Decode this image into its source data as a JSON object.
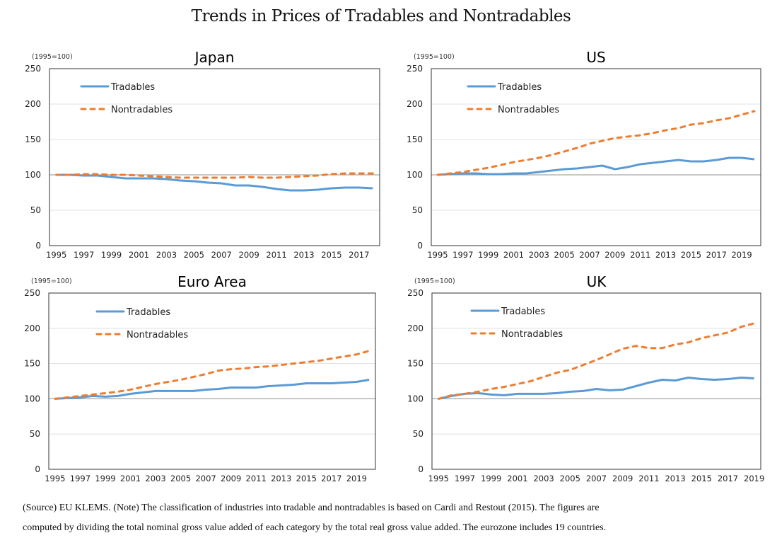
{
  "title": "Trends in Prices of Tradables and Nontradables",
  "colors": {
    "tradables": "#5B9BD5",
    "nontradables": "#ED7D31",
    "grid": "#d9d9d9",
    "baseline": "#a6a6a6"
  },
  "chart_data": [
    {
      "type": "line",
      "title": "Japan",
      "unit_label": "(1995=100)",
      "ylim": [
        0,
        250
      ],
      "yticks": [
        0,
        50,
        100,
        150,
        200,
        250
      ],
      "x": [
        1995,
        1996,
        1997,
        1998,
        1999,
        2000,
        2001,
        2002,
        2003,
        2004,
        2005,
        2006,
        2007,
        2008,
        2009,
        2010,
        2011,
        2012,
        2013,
        2014,
        2015,
        2016,
        2017,
        2018
      ],
      "xtick_labels": [
        "1995",
        "1997",
        "1999",
        "2001",
        "2003",
        "2005",
        "2007",
        "2009",
        "2011",
        "2013",
        "2015",
        "2017"
      ],
      "grid": true,
      "legend": "top-left",
      "series": [
        {
          "name": "Tradables",
          "style": "solid",
          "values": [
            100,
            100,
            99,
            99,
            97,
            95,
            95,
            95,
            94,
            92,
            91,
            89,
            88,
            85,
            85,
            83,
            80,
            78,
            78,
            79,
            81,
            82,
            82,
            81
          ]
        },
        {
          "name": "Nontradables",
          "style": "dashed",
          "values": [
            100,
            100,
            101,
            101,
            100,
            100,
            99,
            98,
            97,
            96,
            96,
            96,
            96,
            96,
            97,
            96,
            96,
            97,
            98,
            99,
            101,
            102,
            102,
            102
          ]
        }
      ]
    },
    {
      "type": "line",
      "title": "US",
      "unit_label": "(1995=100)",
      "ylim": [
        0,
        250
      ],
      "yticks": [
        0,
        50,
        100,
        150,
        200,
        250
      ],
      "x": [
        1995,
        1996,
        1997,
        1998,
        1999,
        2000,
        2001,
        2002,
        2003,
        2004,
        2005,
        2006,
        2007,
        2008,
        2009,
        2010,
        2011,
        2012,
        2013,
        2014,
        2015,
        2016,
        2017,
        2018,
        2019,
        2020
      ],
      "xtick_labels": [
        "1995",
        "1997",
        "1999",
        "2001",
        "2003",
        "2005",
        "2007",
        "2009",
        "2011",
        "2013",
        "2015",
        "2017",
        "2019"
      ],
      "grid": true,
      "legend": "top-left",
      "series": [
        {
          "name": "Tradables",
          "style": "solid",
          "values": [
            100,
            101,
            102,
            102,
            101,
            101,
            102,
            102,
            104,
            106,
            108,
            109,
            111,
            113,
            108,
            111,
            115,
            117,
            119,
            121,
            119,
            119,
            121,
            124,
            124,
            122
          ]
        },
        {
          "name": "Nontradables",
          "style": "dashed",
          "values": [
            100,
            102,
            104,
            107,
            110,
            114,
            118,
            121,
            124,
            128,
            133,
            138,
            144,
            148,
            152,
            154,
            156,
            159,
            163,
            166,
            171,
            173,
            177,
            180,
            185,
            190
          ]
        }
      ]
    },
    {
      "type": "line",
      "title": "Euro Area",
      "unit_label": "(1995=100)",
      "ylim": [
        0,
        250
      ],
      "yticks": [
        0,
        50,
        100,
        150,
        200,
        250
      ],
      "x": [
        1995,
        1996,
        1997,
        1998,
        1999,
        2000,
        2001,
        2002,
        2003,
        2004,
        2005,
        2006,
        2007,
        2008,
        2009,
        2010,
        2011,
        2012,
        2013,
        2014,
        2015,
        2016,
        2017,
        2018,
        2019,
        2020
      ],
      "xtick_labels": [
        "1995",
        "1997",
        "1999",
        "2001",
        "2003",
        "2005",
        "2007",
        "2009",
        "2011",
        "2013",
        "2015",
        "2017",
        "2019"
      ],
      "grid": true,
      "legend": "top-left",
      "series": [
        {
          "name": "Tradables",
          "style": "solid",
          "values": [
            100,
            101,
            102,
            104,
            103,
            104,
            107,
            109,
            111,
            111,
            111,
            111,
            113,
            114,
            116,
            116,
            116,
            118,
            119,
            120,
            122,
            122,
            122,
            123,
            124,
            127
          ]
        },
        {
          "name": "Nontradables",
          "style": "dashed",
          "values": [
            100,
            102,
            104,
            106,
            108,
            110,
            113,
            117,
            121,
            124,
            127,
            131,
            135,
            140,
            142,
            143,
            145,
            146,
            148,
            150,
            152,
            154,
            157,
            160,
            163,
            168
          ]
        }
      ]
    },
    {
      "type": "line",
      "title": "UK",
      "unit_label": "(1995=100)",
      "ylim": [
        0,
        250
      ],
      "yticks": [
        0,
        50,
        100,
        150,
        200,
        250
      ],
      "x": [
        1995,
        1996,
        1997,
        1998,
        1999,
        2000,
        2001,
        2002,
        2003,
        2004,
        2005,
        2006,
        2007,
        2008,
        2009,
        2010,
        2011,
        2012,
        2013,
        2014,
        2015,
        2016,
        2017,
        2018,
        2019
      ],
      "xtick_labels": [
        "1995",
        "1997",
        "1999",
        "2001",
        "2003",
        "2005",
        "2007",
        "2009",
        "2011",
        "2013",
        "2015",
        "2017",
        "2019"
      ],
      "grid": true,
      "legend": "top-left",
      "series": [
        {
          "name": "Tradables",
          "style": "solid",
          "values": [
            100,
            104,
            107,
            108,
            106,
            105,
            107,
            107,
            107,
            108,
            110,
            111,
            114,
            112,
            113,
            118,
            123,
            127,
            126,
            130,
            128,
            127,
            128,
            130,
            129
          ]
        },
        {
          "name": "Nontradables",
          "style": "dashed",
          "values": [
            100,
            105,
            107,
            110,
            114,
            117,
            121,
            125,
            131,
            137,
            141,
            148,
            155,
            163,
            171,
            175,
            172,
            172,
            177,
            180,
            186,
            190,
            194,
            202,
            207
          ]
        }
      ]
    }
  ],
  "notes": [
    "(Source) EU KLEMS. (Note) The classification of industries into tradable and nontradables is based on Cardi and Restout (2015). The figures are",
    "computed by dividing the total nominal gross value added of each category by the total real gross value added. The eurozone includes 19 countries."
  ]
}
